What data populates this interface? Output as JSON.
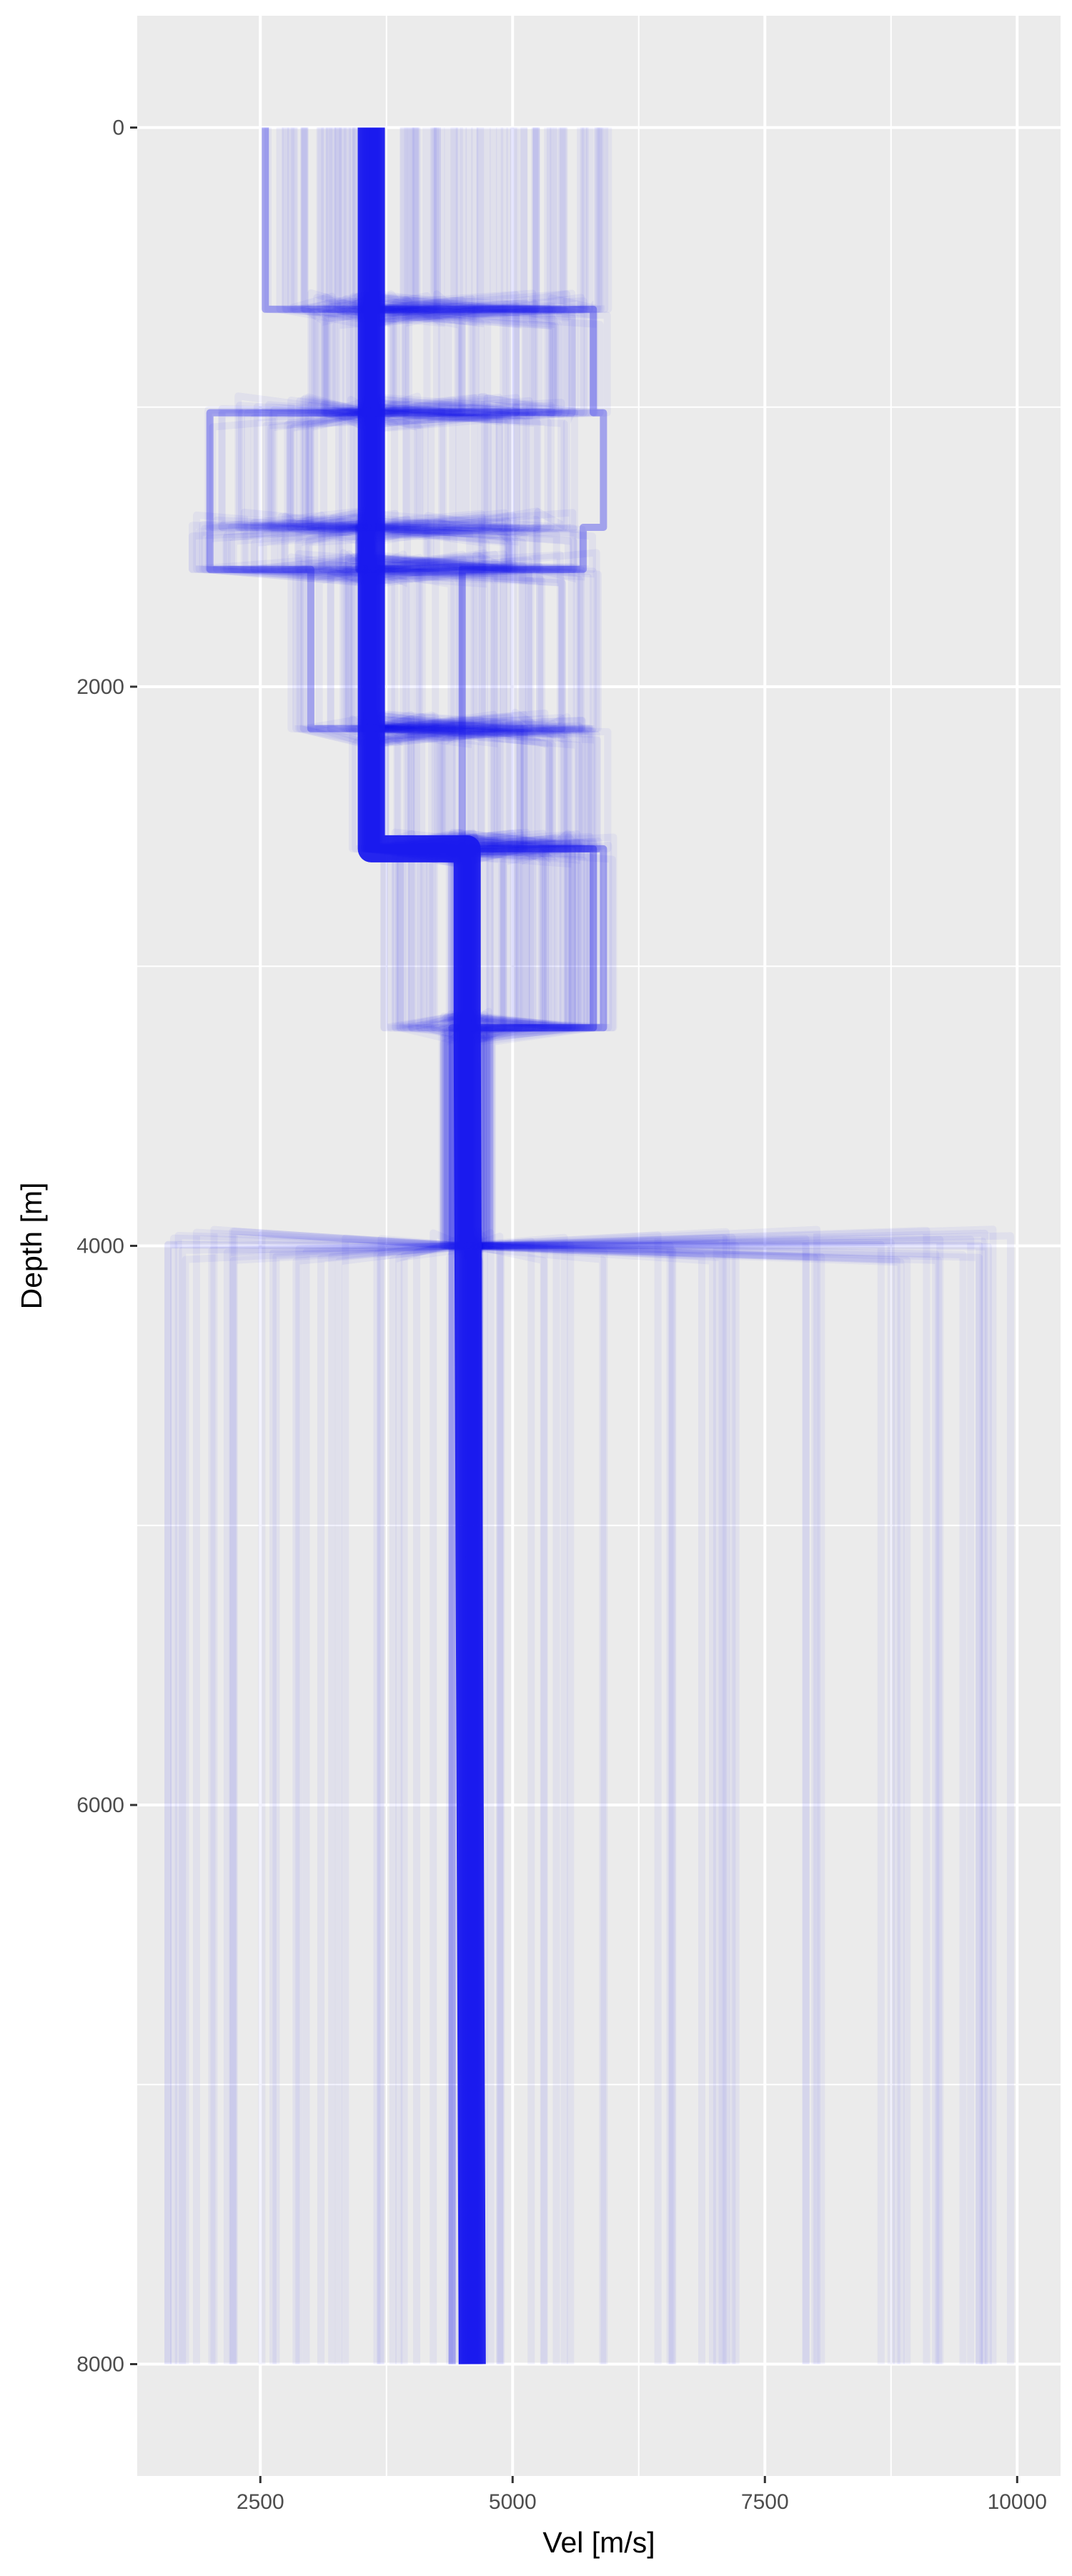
{
  "chart_data": {
    "type": "line",
    "title": "",
    "xlabel": "Vel [m/s]",
    "ylabel": "Depth [m]",
    "xlim": [
      1280,
      10430
    ],
    "ylim": [
      -400,
      8400
    ],
    "y_reversed": true,
    "x_ticks": [
      2500,
      5000,
      7500,
      10000
    ],
    "x_tick_labels": [
      "2500",
      "5000",
      "7500",
      "10000"
    ],
    "y_ticks": [
      0,
      2000,
      4000,
      6000,
      8000
    ],
    "y_tick_labels": [
      "0",
      "2000",
      "4000",
      "6000",
      "8000"
    ],
    "grid": true,
    "legend": "none",
    "series_color": "#1a1aee",
    "panel_background": "#ebebeb",
    "grid_color": "#ffffff",
    "ensemble": {
      "description_of_layers": "velocity-depth model realizations (layered)",
      "layers": [
        {
          "top": 0,
          "bottom": 650,
          "center": 3600,
          "min": 2550,
          "max": 5950
        },
        {
          "top": 650,
          "bottom": 1020,
          "center": 3600,
          "min": 3000,
          "max": 5950
        },
        {
          "top": 1020,
          "bottom": 1430,
          "center": 3600,
          "min": 1900,
          "max": 5700
        },
        {
          "top": 1430,
          "bottom": 1580,
          "center": 3550,
          "min": 1800,
          "max": 5800
        },
        {
          "top": 1580,
          "bottom": 2150,
          "center": 3600,
          "min": 2800,
          "max": 5900
        },
        {
          "top": 2150,
          "bottom": 2580,
          "center": 3600,
          "min": 3400,
          "max": 5950
        },
        {
          "top": 2580,
          "bottom": 3220,
          "center": 4550,
          "min": 3700,
          "max": 6000
        },
        {
          "top": 3220,
          "bottom": 4000,
          "center": 4550,
          "min": 4300,
          "max": 4800
        },
        {
          "top": 4000,
          "bottom": 8000,
          "center": 4600,
          "min": 1500,
          "max": 10000
        }
      ]
    },
    "representative_series": [
      {
        "depth": [
          0,
          2580,
          2580,
          3220,
          3220,
          8000
        ],
        "vel": [
          3600,
          3600,
          4550,
          4550,
          4550,
          4600
        ]
      },
      {
        "depth": [
          0,
          650,
          650,
          1020,
          1020,
          1430,
          1430,
          1580,
          1580,
          2580,
          2580,
          3220,
          3220,
          8000
        ],
        "vel": [
          2550,
          2550,
          5800,
          5800,
          5900,
          5900,
          5700,
          5700,
          4500,
          4500,
          5900,
          5900,
          4400,
          4400
        ]
      },
      {
        "depth": [
          0,
          1020,
          1020,
          1580,
          1580,
          2150,
          2150,
          2580,
          2580,
          3220,
          3220,
          8000
        ],
        "vel": [
          3650,
          3650,
          2000,
          2000,
          3000,
          3000,
          3650,
          3650,
          5800,
          5800,
          4500,
          4500
        ]
      }
    ]
  }
}
